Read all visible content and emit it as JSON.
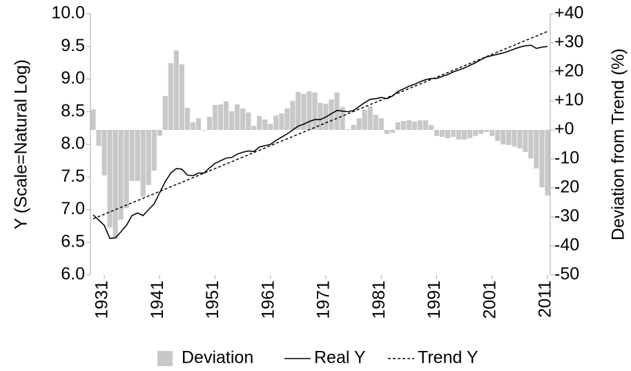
{
  "chart_data": {
    "type": "combo",
    "y_label": "Y (Scale=Natural Log)",
    "y2_label": "Deviation from Trend (%)",
    "x": [
      1929,
      1930,
      1931,
      1932,
      1933,
      1934,
      1935,
      1936,
      1937,
      1938,
      1939,
      1940,
      1941,
      1942,
      1943,
      1944,
      1945,
      1946,
      1947,
      1948,
      1949,
      1950,
      1951,
      1952,
      1953,
      1954,
      1955,
      1956,
      1957,
      1958,
      1959,
      1960,
      1961,
      1962,
      1963,
      1964,
      1965,
      1966,
      1967,
      1968,
      1969,
      1970,
      1971,
      1972,
      1973,
      1974,
      1975,
      1976,
      1977,
      1978,
      1979,
      1980,
      1981,
      1982,
      1983,
      1984,
      1985,
      1986,
      1987,
      1988,
      1989,
      1990,
      1991,
      1992,
      1993,
      1994,
      1995,
      1996,
      1997,
      1998,
      1999,
      2000,
      2001,
      2002,
      2003,
      2004,
      2005,
      2006,
      2007,
      2008,
      2009,
      2010,
      2011
    ],
    "xlim": [
      1928.5,
      2011.5
    ],
    "xticks": [
      1931,
      1941,
      1951,
      1961,
      1971,
      1981,
      1991,
      2001,
      2011
    ],
    "ylim": [
      6.0,
      10.0
    ],
    "yticks": [
      {
        "value": 6.0,
        "label": "6.0"
      },
      {
        "value": 6.5,
        "label": "6.5"
      },
      {
        "value": 7.0,
        "label": "7.0"
      },
      {
        "value": 7.5,
        "label": "7.5"
      },
      {
        "value": 8.0,
        "label": "8.0"
      },
      {
        "value": 8.5,
        "label": "8.5"
      },
      {
        "value": 9.0,
        "label": "9.0"
      },
      {
        "value": 9.5,
        "label": "9.5"
      },
      {
        "value": 10.0,
        "label": "10.0"
      }
    ],
    "y2lim": [
      -50,
      40
    ],
    "y2ticks": [
      -50,
      -40,
      -30,
      -20,
      -10,
      {
        "value": 0,
        "label": "+0"
      },
      {
        "value": 10,
        "label": "+10"
      },
      {
        "value": 20,
        "label": "+20"
      },
      {
        "value": 30,
        "label": "+30"
      },
      {
        "value": 40,
        "label": "+40"
      }
    ],
    "grid": false,
    "legend": "bottom",
    "series": [
      {
        "name": "Deviation",
        "type": "bar",
        "axis": "y2",
        "color": "#c8c8c8",
        "values": [
          7,
          -5.5,
          -15.7,
          -33.6,
          -37.6,
          -31,
          -27,
          -17.6,
          -17.6,
          -23,
          -19,
          -14,
          -2,
          11.7,
          23,
          27.4,
          22.6,
          7.6,
          2.6,
          4,
          -0.2,
          4.5,
          8.6,
          8.8,
          9.8,
          6.4,
          8.8,
          7.4,
          6,
          1.4,
          4.8,
          3.6,
          2.1,
          5,
          5.7,
          7.4,
          10,
          13.1,
          12.4,
          13.3,
          12.9,
          9.3,
          9,
          10.5,
          12.9,
          7.9,
          0.2,
          1.7,
          4,
          6.9,
          8.1,
          5.2,
          4,
          -1.4,
          -1,
          2.6,
          3.1,
          3.3,
          2.9,
          3.3,
          3.3,
          1.7,
          -2.1,
          -2.4,
          -2.9,
          -2.4,
          -3.3,
          -3.3,
          -2.9,
          -2.1,
          -1.4,
          -0.7,
          -2.1,
          -3.8,
          -5,
          -5.2,
          -5.7,
          -6.4,
          -7.6,
          -9.8,
          -13.3,
          -19.8,
          -22.6
        ]
      },
      {
        "name": "Real Y",
        "type": "line",
        "color": "#000000",
        "values": [
          6.92,
          6.84,
          6.76,
          6.56,
          6.57,
          6.66,
          6.76,
          6.91,
          6.95,
          6.91,
          7.0,
          7.09,
          7.26,
          7.43,
          7.56,
          7.63,
          7.62,
          7.53,
          7.52,
          7.56,
          7.56,
          7.64,
          7.71,
          7.75,
          7.79,
          7.8,
          7.85,
          7.88,
          7.9,
          7.89,
          7.96,
          7.98,
          8.0,
          8.06,
          8.11,
          8.16,
          8.22,
          8.28,
          8.31,
          8.35,
          8.38,
          8.38,
          8.42,
          8.47,
          8.52,
          8.51,
          8.5,
          8.52,
          8.58,
          8.64,
          8.69,
          8.7,
          8.72,
          8.7,
          8.74,
          8.81,
          8.85,
          8.89,
          8.92,
          8.96,
          8.99,
          9.01,
          9.01,
          9.04,
          9.07,
          9.11,
          9.14,
          9.17,
          9.21,
          9.25,
          9.3,
          9.34,
          9.36,
          9.38,
          9.4,
          9.43,
          9.46,
          9.49,
          9.51,
          9.52,
          9.47,
          9.49,
          9.5
        ]
      },
      {
        "name": "Trend Y",
        "type": "line",
        "dash": "4 3",
        "color": "#000000",
        "x": [
          1929,
          2011
        ],
        "values": [
          6.86,
          9.73
        ]
      }
    ]
  }
}
